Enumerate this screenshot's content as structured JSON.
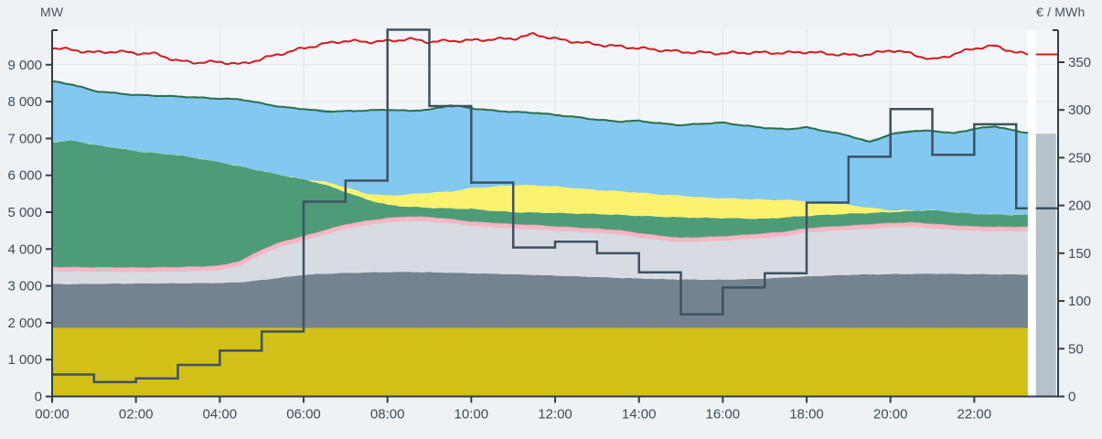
{
  "axes": {
    "left": {
      "unit": "MW",
      "tick_labels": [
        "0",
        "1 000",
        "2 000",
        "3 000",
        "4 000",
        "5 000",
        "6 000",
        "7 000",
        "8 000",
        "9 000"
      ],
      "tick_values_mw": [
        0,
        1000,
        2000,
        3000,
        4000,
        5000,
        6000,
        7000,
        8000,
        9000
      ],
      "range_mw": [
        0,
        9930
      ]
    },
    "right": {
      "unit": "€ / MWh",
      "tick_labels": [
        "0",
        "50",
        "100",
        "150",
        "200",
        "250",
        "300",
        "350"
      ],
      "tick_values": [
        0,
        50,
        100,
        150,
        200,
        250,
        300,
        350
      ],
      "range": [
        0,
        383
      ]
    },
    "x": {
      "tick_labels": [
        "00:00",
        "02:00",
        "04:00",
        "06:00",
        "08:00",
        "10:00",
        "12:00",
        "14:00",
        "16:00",
        "18:00",
        "20:00",
        "22:00"
      ],
      "tick_hours": [
        0,
        2,
        4,
        6,
        8,
        10,
        12,
        14,
        16,
        18,
        20,
        22
      ],
      "range_hours": [
        0,
        24
      ]
    }
  },
  "chart_data": {
    "type": "area",
    "title": "",
    "xlabel": "",
    "ylabel_left": "MW",
    "ylabel_right": "€ / MWh",
    "grid": true,
    "times_h": [
      0,
      0.5,
      1,
      1.5,
      2,
      2.5,
      3,
      3.5,
      4,
      4.5,
      5,
      5.5,
      6,
      6.5,
      7,
      7.5,
      8,
      8.5,
      9,
      9.5,
      10,
      10.5,
      11,
      11.5,
      12,
      12.5,
      13,
      13.5,
      14,
      14.5,
      15,
      15.5,
      16,
      16.5,
      17,
      17.5,
      18,
      18.5,
      19,
      19.5,
      20,
      20.5,
      21,
      21.5,
      22,
      22.5,
      23,
      23.3
    ],
    "stack_series": [
      {
        "name": "band-mustard",
        "color": "#d2c019",
        "top_mw": [
          1860,
          1860,
          1860,
          1860,
          1860,
          1860,
          1860,
          1860,
          1860,
          1860,
          1860,
          1860,
          1860,
          1860,
          1860,
          1860,
          1860,
          1860,
          1860,
          1860,
          1860,
          1860,
          1860,
          1860,
          1860,
          1860,
          1860,
          1860,
          1860,
          1860,
          1860,
          1860,
          1860,
          1860,
          1860,
          1860,
          1860,
          1860,
          1860,
          1860,
          1860,
          1860,
          1860,
          1860,
          1860,
          1860,
          1860,
          1860
        ]
      },
      {
        "name": "band-slate-gray",
        "color": "#75828f",
        "top_mw": [
          3050,
          3050,
          3055,
          3060,
          3065,
          3070,
          3070,
          3075,
          3080,
          3100,
          3160,
          3230,
          3300,
          3330,
          3350,
          3365,
          3375,
          3380,
          3370,
          3360,
          3345,
          3330,
          3315,
          3300,
          3280,
          3260,
          3240,
          3220,
          3200,
          3185,
          3175,
          3170,
          3170,
          3180,
          3200,
          3230,
          3255,
          3280,
          3300,
          3310,
          3320,
          3325,
          3330,
          3325,
          3320,
          3315,
          3310,
          3310
        ]
      },
      {
        "name": "band-light-gray",
        "color": "#d6dce2",
        "top_mw": [
          3390,
          3385,
          3380,
          3378,
          3375,
          3378,
          3385,
          3400,
          3420,
          3550,
          3850,
          4080,
          4220,
          4390,
          4545,
          4640,
          4720,
          4760,
          4745,
          4690,
          4620,
          4590,
          4550,
          4530,
          4490,
          4460,
          4430,
          4390,
          4310,
          4240,
          4180,
          4200,
          4220,
          4260,
          4300,
          4350,
          4440,
          4480,
          4510,
          4550,
          4580,
          4600,
          4560,
          4520,
          4490,
          4480,
          4480,
          4480
        ]
      },
      {
        "name": "band-pink",
        "color": "#f2b8c5",
        "edge_color": "#e79cb0",
        "top_mw": [
          3520,
          3515,
          3510,
          3508,
          3505,
          3508,
          3515,
          3530,
          3555,
          3690,
          3990,
          4215,
          4355,
          4520,
          4675,
          4770,
          4850,
          4890,
          4875,
          4820,
          4750,
          4720,
          4680,
          4660,
          4620,
          4590,
          4560,
          4520,
          4440,
          4370,
          4310,
          4330,
          4350,
          4390,
          4430,
          4480,
          4570,
          4610,
          4640,
          4680,
          4710,
          4730,
          4690,
          4650,
          4620,
          4610,
          4610,
          4610
        ]
      },
      {
        "name": "band-green",
        "color": "#4d9c78",
        "top_mw": [
          6900,
          6950,
          6830,
          6750,
          6660,
          6600,
          6550,
          6460,
          6360,
          6240,
          6120,
          6000,
          5890,
          5750,
          5550,
          5350,
          5200,
          5150,
          5120,
          5100,
          5090,
          5040,
          5000,
          4990,
          4980,
          4965,
          4950,
          4930,
          4900,
          4880,
          4860,
          4850,
          4840,
          4830,
          4820,
          4860,
          4900,
          4930,
          4960,
          4980,
          5000,
          5030,
          5060,
          5000,
          4960,
          4940,
          4930,
          4930
        ]
      },
      {
        "name": "band-solar-yellow",
        "color": "#fbf26d",
        "top_mw": [
          6900,
          6950,
          6830,
          6750,
          6660,
          6600,
          6550,
          6460,
          6360,
          6240,
          6120,
          6000,
          5890,
          5830,
          5680,
          5500,
          5450,
          5480,
          5530,
          5560,
          5655,
          5690,
          5735,
          5730,
          5700,
          5650,
          5600,
          5570,
          5530,
          5480,
          5450,
          5400,
          5380,
          5360,
          5340,
          5330,
          5300,
          5250,
          5200,
          5120,
          5050,
          5050,
          5060,
          5000,
          4960,
          4940,
          4930,
          4930
        ]
      },
      {
        "name": "band-sky-blue",
        "color": "#82c8f0",
        "top_mw": [
          8550,
          8460,
          8290,
          8230,
          8180,
          8160,
          8140,
          8110,
          8080,
          8060,
          7950,
          7850,
          7800,
          7780,
          7740,
          7760,
          7780,
          7750,
          7780,
          7860,
          7790,
          7760,
          7720,
          7700,
          7640,
          7580,
          7510,
          7440,
          7480,
          7410,
          7360,
          7400,
          7430,
          7350,
          7290,
          7250,
          7300,
          7190,
          7080,
          6940,
          7150,
          7230,
          7210,
          7140,
          7260,
          7310,
          7200,
          7150
        ]
      }
    ],
    "line_series": [
      {
        "name": "dark-green-line",
        "color": "#2c6e49",
        "axis": "left",
        "width": 2,
        "values_mw": [
          8550,
          8460,
          8290,
          8230,
          8180,
          8160,
          8140,
          8110,
          8080,
          8060,
          7950,
          7850,
          7800,
          7730,
          7740,
          7760,
          7780,
          7750,
          7780,
          7900,
          7820,
          7760,
          7720,
          7700,
          7640,
          7580,
          7510,
          7460,
          7480,
          7410,
          7360,
          7400,
          7430,
          7350,
          7290,
          7250,
          7300,
          7190,
          7080,
          6900,
          7110,
          7200,
          7210,
          7140,
          7260,
          7330,
          7200,
          7150
        ]
      },
      {
        "name": "red-line",
        "color": "#d7191c",
        "axis": "left",
        "width": 2,
        "flat_tail_mw": 9280,
        "values_mw": [
          9460,
          9400,
          9330,
          9360,
          9320,
          9290,
          9100,
          9060,
          9080,
          9010,
          9160,
          9310,
          9450,
          9570,
          9650,
          9620,
          9640,
          9700,
          9620,
          9650,
          9660,
          9690,
          9710,
          9830,
          9700,
          9620,
          9550,
          9500,
          9450,
          9400,
          9350,
          9330,
          9310,
          9330,
          9330,
          9320,
          9350,
          9300,
          9260,
          9280,
          9400,
          9300,
          9130,
          9280,
          9450,
          9510,
          9330,
          9280
        ]
      },
      {
        "name": "price-step-line",
        "color": "#3d5263",
        "axis": "right",
        "width": 2.5,
        "hourly_eur_mwh": [
          23,
          15,
          19,
          33,
          48,
          68,
          204,
          226,
          384,
          304,
          224,
          156,
          162,
          150,
          130,
          86,
          114,
          129,
          203,
          251,
          301,
          253,
          285,
          197
        ]
      }
    ],
    "data_gap": {
      "start_h": 23.3,
      "end_h": 23.47,
      "color": "#ffffff"
    },
    "forecast_bar": {
      "start_h": 23.47,
      "end_h": 23.95,
      "top_mw": 7130,
      "color": "#b7c1ca"
    }
  },
  "colors": {
    "page_background": "#eef2f5",
    "plot_background": "#f3f6f8",
    "gridline": "#e3e8ec",
    "axis_line": "#2f3e4d",
    "tick_text": "#3e4b58"
  }
}
